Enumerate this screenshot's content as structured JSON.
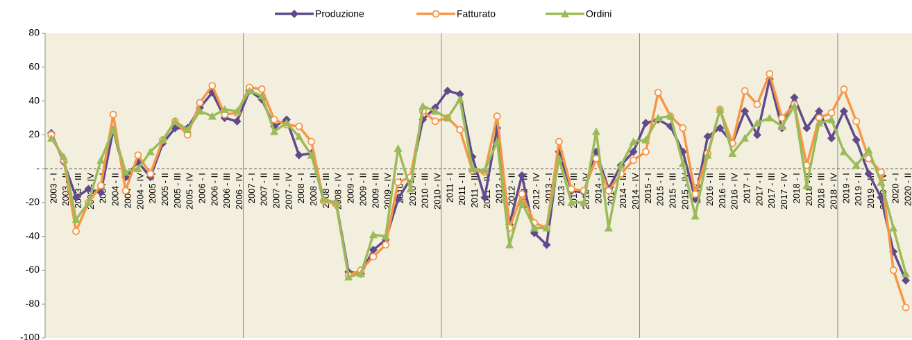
{
  "chart_data": {
    "type": "line",
    "categories": [
      "2003 - I",
      "2003 - II",
      "2003 - III",
      "2003 - IV",
      "2004 - I",
      "2004 - II",
      "2004 - III",
      "2004 - IV",
      "2005 - I",
      "2005 - II",
      "2005 - III",
      "2005 - IV",
      "2006 - I",
      "2006 - II",
      "2006 - III",
      "2006 - IV",
      "2007 - I",
      "2007 - II",
      "2007 - III",
      "2007 - IV",
      "2008 - I",
      "2008 - II",
      "2008 - III",
      "2008 - IV",
      "2009 - I",
      "2009 - II",
      "2009 - III",
      "2009 - IV",
      "2010 - I",
      "2010 - II",
      "2010 - III",
      "2010 - IV",
      "2011 - I",
      "2011 - II",
      "2011 - III",
      "2011 - IV",
      "2012 - I",
      "2012 - II",
      "2012 - III",
      "2012 - IV",
      "2013 - I",
      "2013 - II",
      "2013 - III",
      "2013 - IV",
      "2014 - I",
      "2014 - II",
      "2014 - III",
      "2014 - IV",
      "2015 - I",
      "2015 - II",
      "2015 - III",
      "2015 - IV",
      "2016 - I",
      "2016 - II",
      "2016 - III",
      "2016 - IV",
      "2017 - I",
      "2017 - II",
      "2017 - III",
      "2017 - IV",
      "2018 - I",
      "2018 - II",
      "2018 - III",
      "2018 - IV",
      "2019 - I",
      "2019 - II",
      "2019 - III",
      "2019 - IV",
      "2020 - I",
      "2020 - II"
    ],
    "series": [
      {
        "name": "Produzione",
        "color": "#5f4a8b",
        "marker": "diamond",
        "values": [
          21,
          4,
          -17,
          -12,
          -14,
          23,
          -5,
          4,
          -5,
          15,
          24,
          24,
          36,
          45,
          30,
          28,
          46,
          41,
          25,
          29,
          8,
          9,
          -19,
          -20,
          -61,
          -62,
          -48,
          -42,
          -18,
          -6,
          29,
          36,
          46,
          44,
          7,
          -17,
          24,
          -33,
          -4,
          -38,
          -45,
          10,
          -13,
          -14,
          10,
          -12,
          2,
          10,
          27,
          29,
          25,
          10,
          -18,
          19,
          24,
          15,
          34,
          20,
          53,
          24,
          42,
          24,
          34,
          18,
          34,
          17,
          -3,
          -17,
          -49,
          -66
        ]
      },
      {
        "name": "Fatturato",
        "color": "#f79646",
        "marker": "circle",
        "values": [
          20,
          5,
          -37,
          -20,
          -10,
          32,
          -13,
          8,
          -3,
          17,
          28,
          20,
          39,
          49,
          32,
          33,
          48,
          47,
          29,
          26,
          25,
          16,
          -19,
          -21,
          -63,
          -60,
          -52,
          -45,
          -8,
          -5,
          34,
          28,
          30,
          23,
          -1,
          -2,
          31,
          -35,
          -15,
          -32,
          -35,
          16,
          -12,
          -13,
          6,
          -13,
          -3,
          5,
          10,
          45,
          31,
          24,
          -15,
          9,
          35,
          15,
          46,
          38,
          56,
          30,
          38,
          2,
          30,
          33,
          47,
          28,
          6,
          -2,
          -60,
          -82
        ]
      },
      {
        "name": "Ordini",
        "color": "#9bbb59",
        "marker": "triangle",
        "values": [
          18,
          7,
          -30,
          -20,
          5,
          23,
          -2,
          0,
          10,
          17,
          28,
          23,
          34,
          31,
          35,
          34,
          46,
          43,
          22,
          27,
          19,
          8,
          -18,
          -20,
          -64,
          -62,
          -39,
          -40,
          12,
          -12,
          37,
          34,
          30,
          41,
          0,
          -1,
          16,
          -45,
          -20,
          -35,
          -35,
          6,
          -20,
          -20,
          22,
          -35,
          2,
          16,
          17,
          30,
          31,
          3,
          -28,
          8,
          35,
          9,
          18,
          27,
          30,
          25,
          37,
          -10,
          27,
          29,
          10,
          2,
          11,
          -8,
          -35,
          -62
        ]
      }
    ],
    "ylim": [
      -100,
      80
    ],
    "yticks": [
      80,
      60,
      40,
      20,
      {
        "value": 0,
        "label": "-"
      },
      -20,
      -40,
      -60,
      -80,
      -100
    ]
  }
}
